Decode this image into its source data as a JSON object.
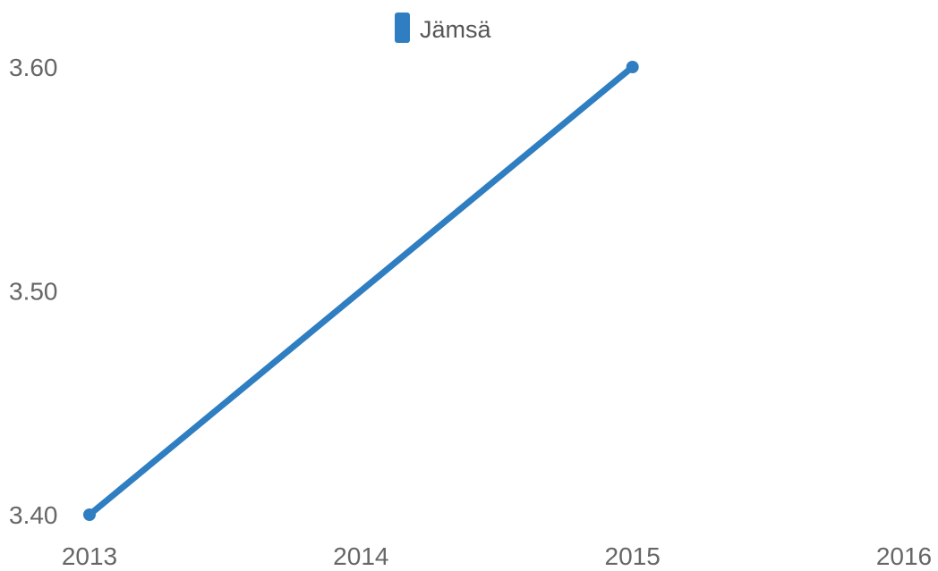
{
  "chart_data": {
    "type": "line",
    "title": "",
    "xlabel": "",
    "ylabel": "",
    "legend": {
      "position": "top-center",
      "entries": [
        "Jämsä"
      ]
    },
    "x_ticks": [
      "2013",
      "2014",
      "2015",
      "2016"
    ],
    "y_ticks": [
      "3.40",
      "3.50",
      "3.60"
    ],
    "xlim": [
      2013,
      2016
    ],
    "ylim": [
      3.4,
      3.6
    ],
    "grid": false,
    "series": [
      {
        "name": "Jämsä",
        "color": "#2f7ec1",
        "x": [
          2013,
          2015
        ],
        "y": [
          3.4,
          3.6
        ]
      }
    ]
  }
}
